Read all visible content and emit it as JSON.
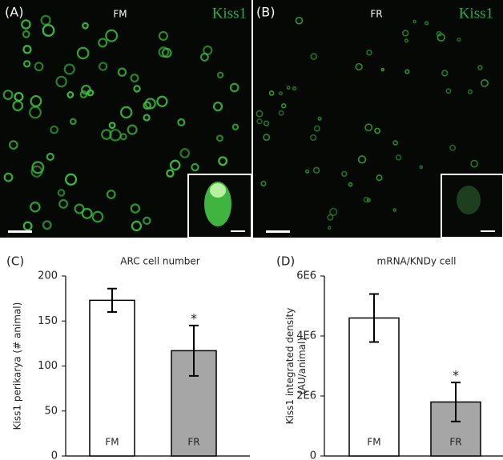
{
  "images": [
    {
      "label": "(A)",
      "title": "FM",
      "marker": "Kiss1"
    },
    {
      "label": "(B)",
      "title": "FR",
      "marker": "Kiss1"
    }
  ],
  "chart_data": [
    {
      "type": "bar",
      "panel": "(C)",
      "title": "ARC cell number",
      "ylabel": [
        "Kiss1 perikarya (# animal)"
      ],
      "categories": [
        "FM",
        "FR"
      ],
      "values": [
        173,
        117
      ],
      "errors": [
        13,
        28
      ],
      "colors": [
        "#ffffff",
        "#a6a6a6"
      ],
      "ylim": [
        0,
        200
      ],
      "yticks": [
        0,
        50,
        100,
        150,
        200
      ],
      "annotations": [
        null,
        "*"
      ]
    },
    {
      "type": "bar",
      "panel": "(D)",
      "title": "mRNA/KNDy cell",
      "ylabel": [
        "Kiss1 integrated density",
        "(AU/animal)"
      ],
      "categories": [
        "FM",
        "FR"
      ],
      "values": [
        4600000,
        1800000
      ],
      "errors": [
        800000,
        650000
      ],
      "colors": [
        "#ffffff",
        "#a6a6a6"
      ],
      "ylim": [
        0,
        6000000
      ],
      "yticks": [
        0,
        {
          "value": 2000000,
          "label": "2E6"
        },
        {
          "value": 4000000,
          "label": "4E6"
        },
        {
          "value": 6000000,
          "label": "6E6"
        }
      ],
      "annotations": [
        null,
        "*"
      ]
    }
  ]
}
